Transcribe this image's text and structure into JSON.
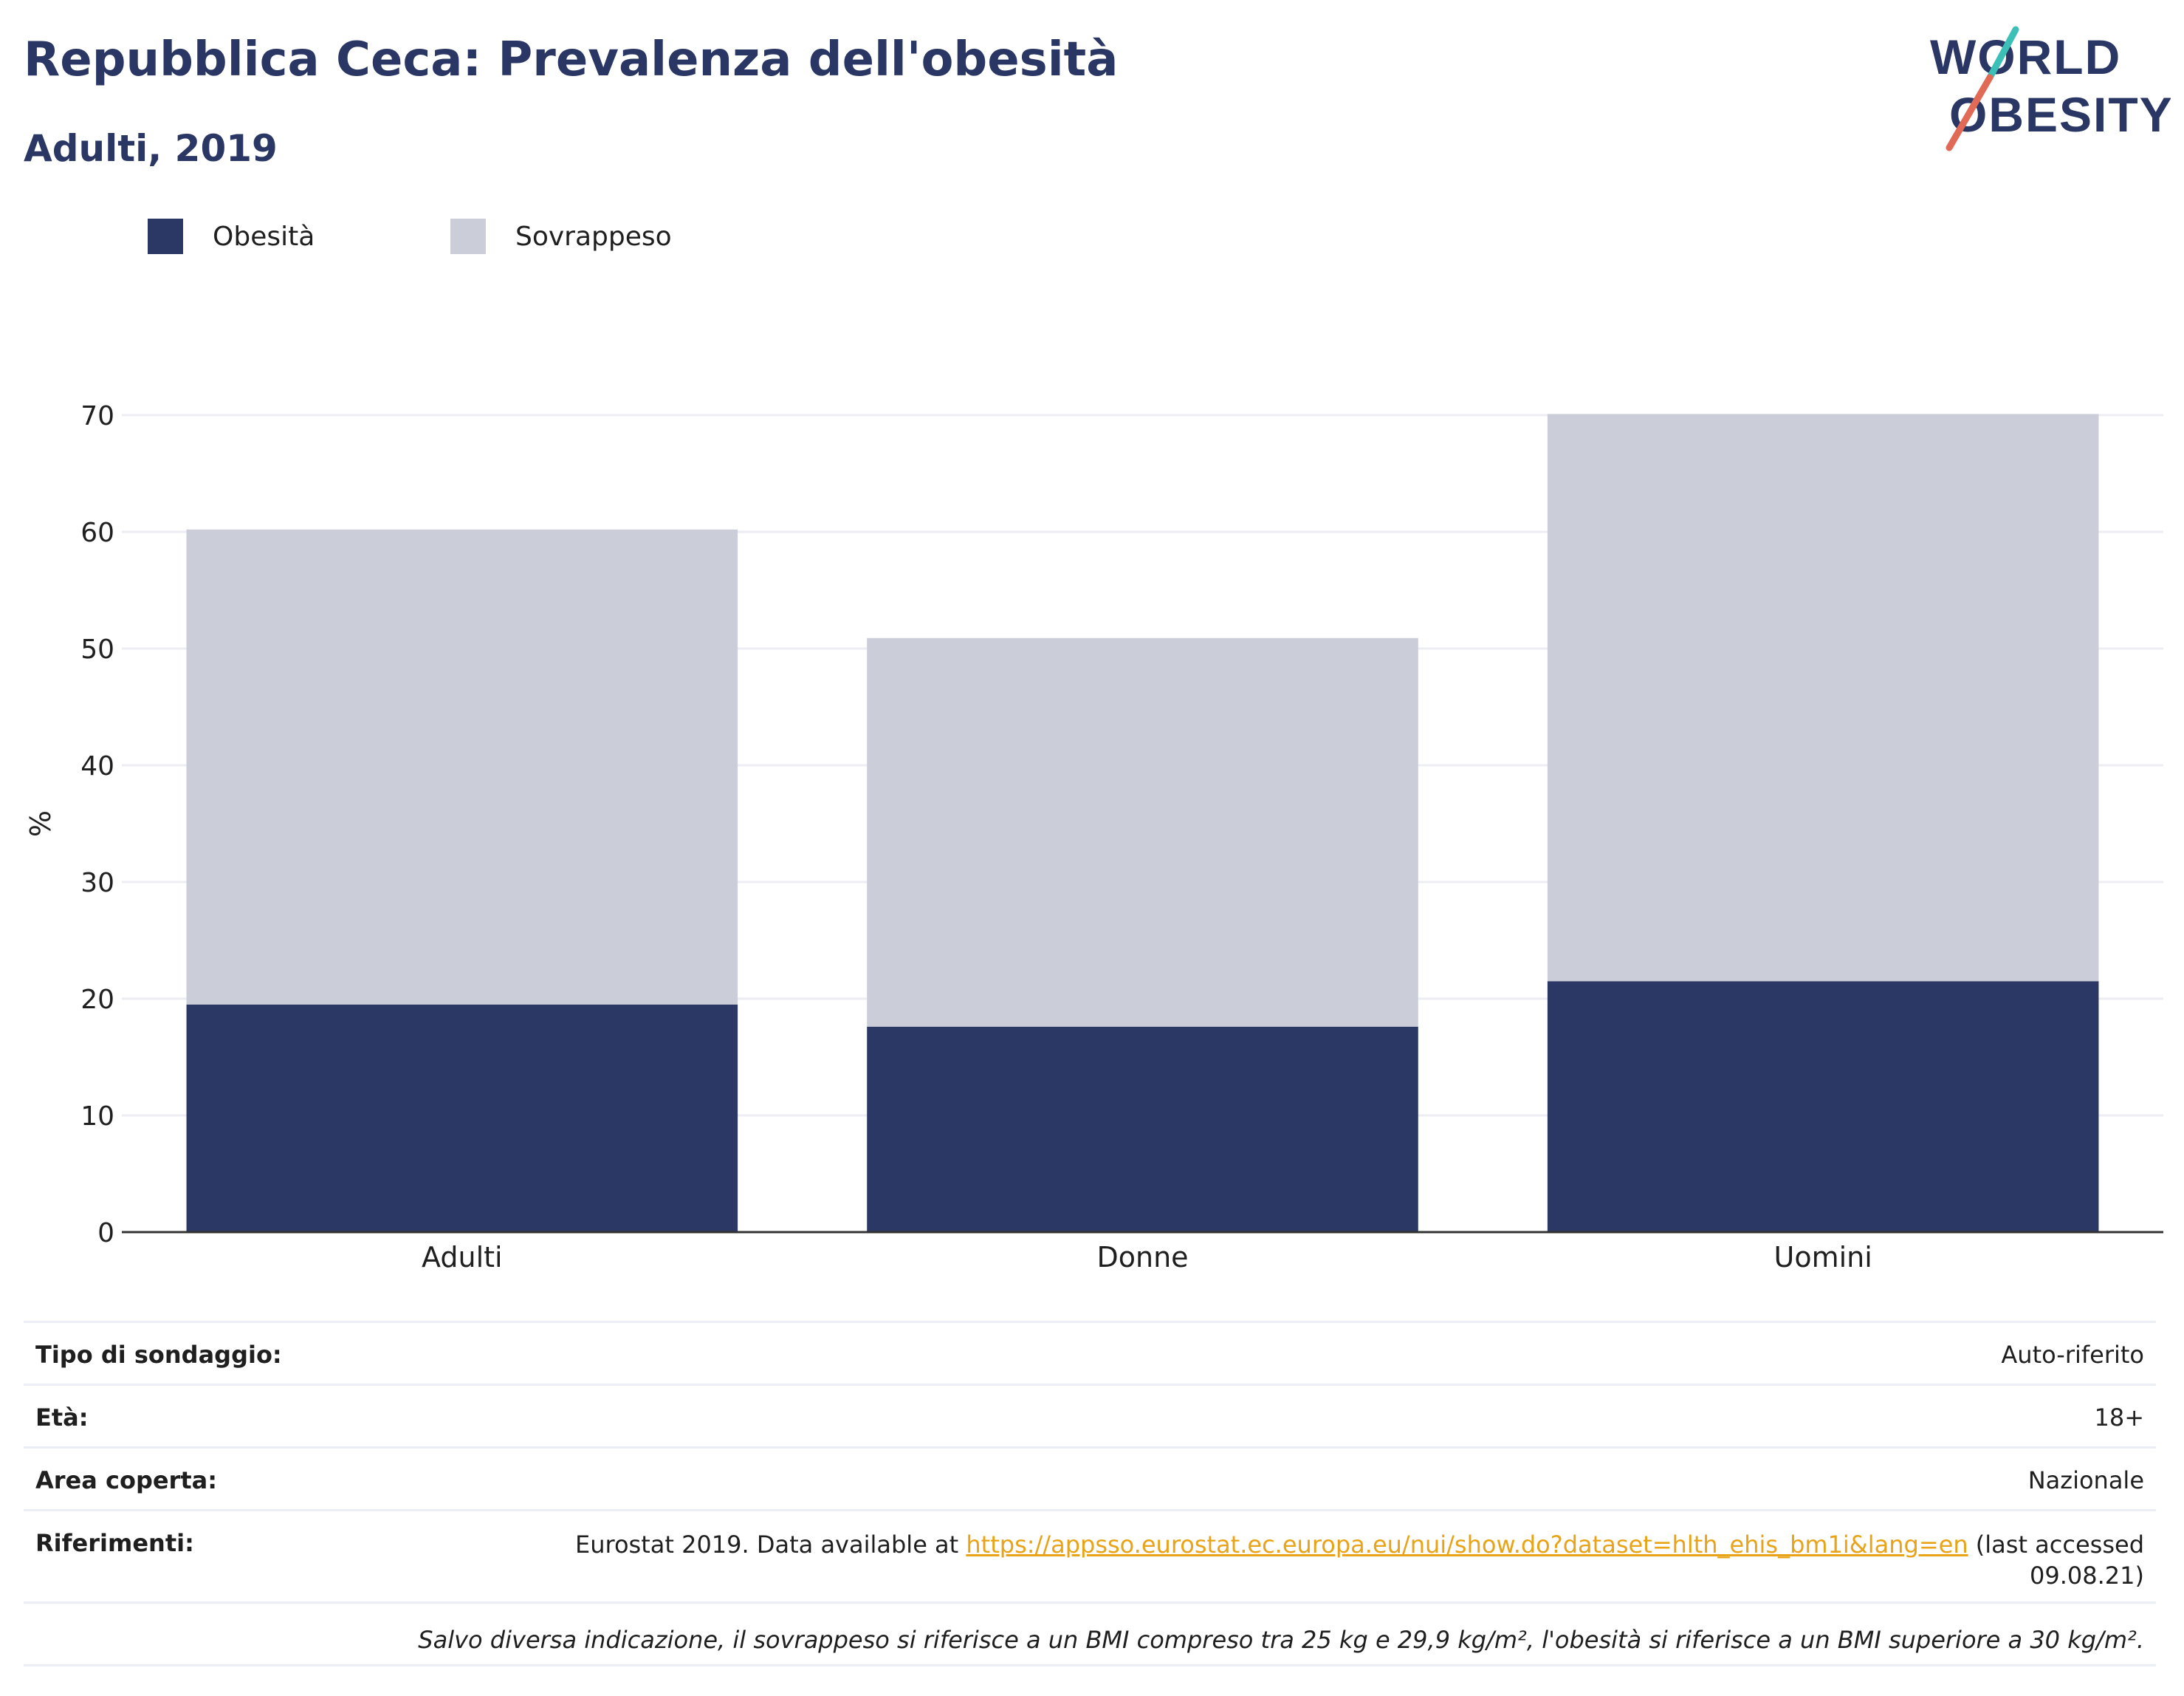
{
  "header": {
    "title": "Repubblica Ceca: Prevalenza dell'obesità",
    "subtitle": "Adulti, 2019"
  },
  "logo": {
    "line1": "WORLD",
    "line2": "OBESITY"
  },
  "colors": {
    "obesity": "#2b3865",
    "overweight": "#cbcdd8",
    "title": "#2a3764",
    "link": "#e8a317"
  },
  "chart_data": {
    "type": "bar",
    "stacked": true,
    "categories": [
      "Adulti",
      "Donne",
      "Uomini"
    ],
    "series": [
      {
        "name": "Obesità",
        "values": [
          19.5,
          17.6,
          21.5
        ]
      },
      {
        "name": "Sovrappeso",
        "values": [
          40.7,
          33.3,
          48.6
        ]
      }
    ],
    "ylabel": "%",
    "ylim": [
      0,
      70
    ],
    "yticks": [
      "0",
      "10",
      "20",
      "30",
      "40",
      "50",
      "60",
      "70"
    ],
    "grid": true,
    "legend": "top-left"
  },
  "info": {
    "survey_type": {
      "label": "Tipo di sondaggio:",
      "value": "Auto-riferito"
    },
    "age": {
      "label": "Età:",
      "value": "18+"
    },
    "area": {
      "label": "Area coperta:",
      "value": "Nazionale"
    },
    "references": {
      "label": "Riferimenti:",
      "prefix": "Eurostat 2019. Data available at ",
      "link": "https://appsso.eurostat.ec.europa.eu/nui/show.do?dataset=hlth_ehis_bm1i&lang=en",
      "suffix": " (last accessed 09.08.21)"
    },
    "note": "Salvo diversa indicazione, il sovrappeso si riferisce a un BMI compreso tra 25 kg e 29,9 kg/m², l'obesità si riferisce a un BMI superiore a 30 kg/m²."
  }
}
